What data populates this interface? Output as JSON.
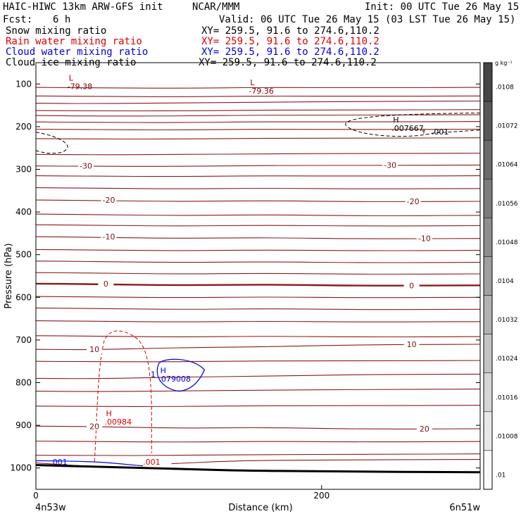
{
  "header": {
    "model": "HAIC-HIWC 13km ARW-GFS init",
    "org": "NCAR/MMM",
    "init": "Init: 00 UTC Tue 26 May 15",
    "fcst_label": "Fcst:",
    "fcst_value": "6 h",
    "valid": "Valid: 06 UTC Tue 26 May 15 (03 LST Tue 26 May 15)"
  },
  "legend": [
    {
      "name": "Snow mixing ratio",
      "xy": "XY= 259.5, 91.6 to 274.6,110.2",
      "color": "#000000"
    },
    {
      "name": "Rain water mixing ratio",
      "xy": "XY= 259.5, 91.6 to 274.6,110.2",
      "color": "#dd0000"
    },
    {
      "name": "Cloud water mixing ratio",
      "xy": "XY= 259.5, 91.6 to 274.6,110.2",
      "color": "#0000dd"
    },
    {
      "name": "Cloud ice mixing ratio",
      "xy": "XY= 259.5, 91.6 to 274.6,110.2",
      "color": "#000000"
    }
  ],
  "chart_data": {
    "type": "contour",
    "xlabel": "Distance (km)",
    "ylabel": "Pressure (hPa)",
    "xlim": [
      0,
      300
    ],
    "ylim": [
      1050,
      50
    ],
    "x_ticks": [
      0,
      200
    ],
    "y_ticks": [
      100,
      200,
      300,
      400,
      500,
      600,
      700,
      800,
      900,
      1000
    ],
    "x_endpoints": {
      "left": "4n53w",
      "right": "6n51w"
    },
    "temperature_labels": [
      {
        "text": "-30",
        "x": 35,
        "p": 292
      },
      {
        "text": "-30",
        "x": 248,
        "p": 290
      },
      {
        "text": "-20",
        "x": 51,
        "p": 372
      },
      {
        "text": "-20",
        "x": 264,
        "p": 375
      },
      {
        "text": "-10",
        "x": 51,
        "p": 458
      },
      {
        "text": "-10",
        "x": 272,
        "p": 462
      },
      {
        "text": "0",
        "x": 49,
        "p": 568
      },
      {
        "text": "0",
        "x": 263,
        "p": 572
      },
      {
        "text": "10",
        "x": 41,
        "p": 722
      },
      {
        "text": "10",
        "x": 263,
        "p": 710
      },
      {
        "text": "20",
        "x": 41,
        "p": 902
      },
      {
        "text": "20",
        "x": 272,
        "p": 908
      }
    ],
    "extrema": [
      {
        "kind": "L",
        "value": "-79.38",
        "x": 25,
        "p": 92,
        "color": "#8b0000"
      },
      {
        "kind": "L",
        "value": "-79.36",
        "x": 152,
        "p": 103,
        "color": "#8b0000"
      },
      {
        "kind": "H",
        "value": ".007667",
        "x": 252,
        "p": 190,
        "color": "#000000"
      },
      {
        "kind": "H",
        "value": ".00984",
        "x": 51,
        "p": 878,
        "color": "#dd0000"
      },
      {
        "kind": "H",
        "value": ".079008",
        "x": 89,
        "p": 778,
        "color": "#0000dd"
      }
    ],
    "contour_labels": [
      {
        "text": ".001",
        "x": 283,
        "p": 212,
        "color": "#000000"
      },
      {
        "text": ".001",
        "x": 81,
        "p": 986,
        "color": "#dd0000"
      },
      {
        "text": ".001",
        "x": 16,
        "p": 986,
        "color": "#0000dd"
      },
      {
        "text": "1",
        "x": 82,
        "p": 780,
        "color": "#0000dd"
      }
    ],
    "colorbar": {
      "unit": "g kg⁻¹",
      "labels": [
        ".0108",
        ".01072",
        ".01064",
        ".01056",
        ".01048",
        ".0104",
        ".01032",
        ".01024",
        ".01016",
        ".01008",
        ".01"
      ]
    }
  }
}
